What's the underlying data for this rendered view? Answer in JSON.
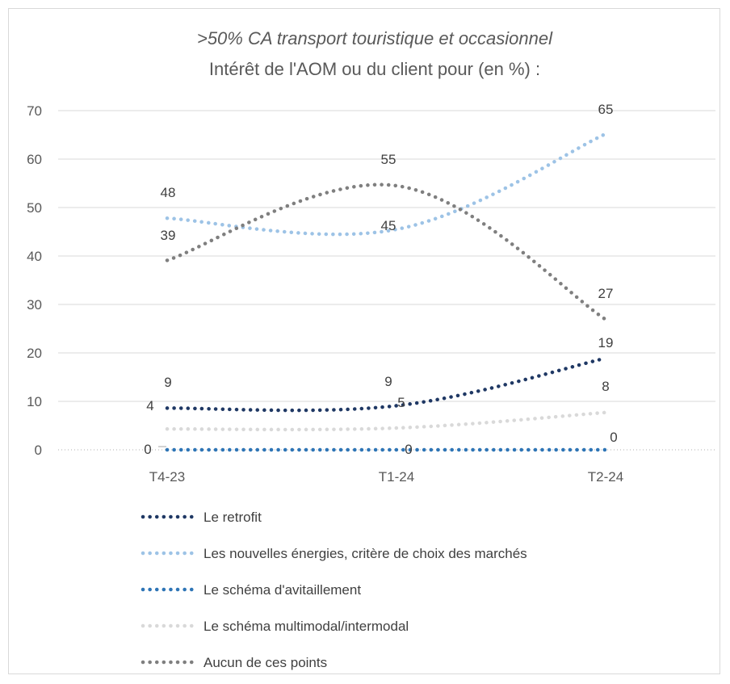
{
  "chart_data": {
    "type": "line",
    "title_line1": ">50% CA transport touristique et occasionnel",
    "title_line2": "Intérêt de l'AOM ou du client pour (en %) :",
    "categories": [
      "T4-23",
      "T1-24",
      "T2-24"
    ],
    "ylim": [
      0,
      70
    ],
    "yticks": [
      0,
      10,
      20,
      30,
      40,
      50,
      60,
      70
    ],
    "grid": true,
    "legend_position": "bottom",
    "line_style": "dotted",
    "series": [
      {
        "name": "Le retrofit",
        "values": [
          8.6,
          9.1,
          18.9
        ],
        "labels": [
          "9",
          "9",
          "19"
        ],
        "color": "#1f3864"
      },
      {
        "name": "Les nouvelles énergies, critère de choix des marchés",
        "values": [
          47.8,
          45.5,
          65.2
        ],
        "labels": [
          "48",
          "45",
          "65"
        ],
        "color": "#9dc3e6"
      },
      {
        "name": "Le schéma d'avitaillement",
        "values": [
          0,
          0,
          0
        ],
        "labels": [
          "0",
          "0",
          "0"
        ],
        "color": "#2e75b6"
      },
      {
        "name": "Le schéma multimodal/intermodal",
        "values": [
          4.3,
          4.5,
          7.7
        ],
        "labels": [
          "4",
          "5",
          "8"
        ],
        "color": "#d9d9d9"
      },
      {
        "name": "Aucun de ces points",
        "values": [
          39.1,
          54.5,
          26.9
        ],
        "labels": [
          "39",
          "55",
          "27"
        ],
        "color": "#7f7f7f"
      }
    ]
  }
}
